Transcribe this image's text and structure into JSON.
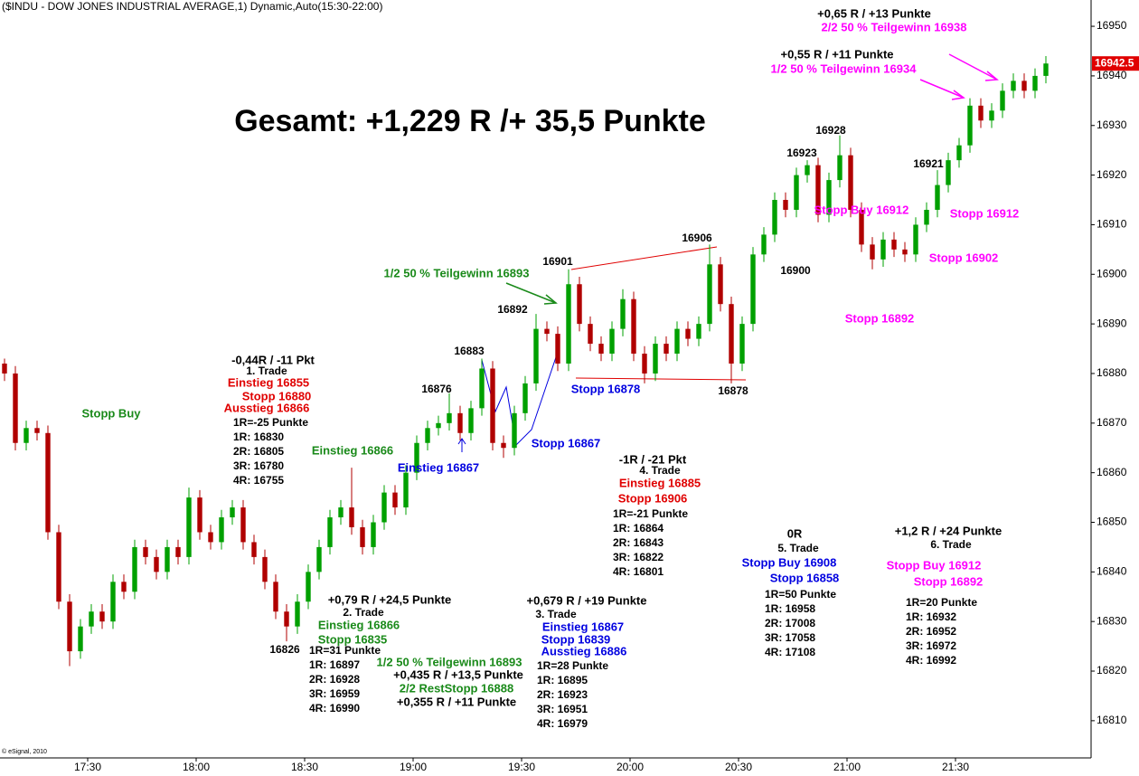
{
  "chart_data": {
    "type": "candlestick",
    "title": "($INDU - DOW JONES INDUSTRIAL AVERAGE,1) Dynamic,Auto(15:30-22:00)",
    "footer": "© eSignal, 2010",
    "xlim": [
      1025.75,
      1327.5
    ],
    "xticks": [
      {
        "value": 1050,
        "label": "17:30"
      },
      {
        "value": 1080,
        "label": "18:00"
      },
      {
        "value": 1110,
        "label": "18:30"
      },
      {
        "value": 1140,
        "label": "19:00"
      },
      {
        "value": 1170,
        "label": "19:30"
      },
      {
        "value": 1200,
        "label": "20:00"
      },
      {
        "value": 1230,
        "label": "20:30"
      },
      {
        "value": 1260,
        "label": "21:00"
      },
      {
        "value": 1290,
        "label": "21:30"
      }
    ],
    "ylim": [
      16802.5,
      16955.3
    ],
    "yticks": [
      16810,
      16820,
      16830,
      16840,
      16850,
      16860,
      16870,
      16880,
      16890,
      16900,
      16910,
      16920,
      16930,
      16940,
      16950
    ],
    "series": [
      {
        "up_color": "#00a000",
        "down_color": "#b00000",
        "x": [
          1027,
          1030,
          1033,
          1036,
          1039,
          1042,
          1045,
          1048,
          1051,
          1054,
          1057,
          1060,
          1063,
          1066,
          1069,
          1072,
          1075,
          1078,
          1081,
          1084,
          1087,
          1090,
          1093,
          1096,
          1099,
          1102,
          1105,
          1108,
          1111,
          1114,
          1117,
          1120,
          1123,
          1126,
          1129,
          1132,
          1135,
          1138,
          1141,
          1144,
          1147,
          1150,
          1153,
          1156,
          1159,
          1162,
          1165,
          1168,
          1171,
          1174,
          1177,
          1180,
          1183,
          1186,
          1189,
          1192,
          1195,
          1198,
          1201,
          1204,
          1207,
          1210,
          1213,
          1216,
          1219,
          1222,
          1225,
          1228,
          1231,
          1234,
          1237,
          1240,
          1243,
          1246,
          1249,
          1252,
          1255,
          1258,
          1261,
          1264,
          1267,
          1270,
          1273,
          1276,
          1279,
          1282,
          1285,
          1288,
          1291,
          1294,
          1297,
          1300,
          1303,
          1306,
          1309,
          1312,
          1315
        ],
        "open": [
          16882,
          16880,
          16866,
          16869,
          16868,
          16848,
          16834,
          16824,
          16829,
          16832,
          16830,
          16838,
          16836,
          16845,
          16843,
          16840,
          16845,
          16843,
          16855,
          16848,
          16846,
          16851,
          16853,
          16846,
          16843,
          16838,
          16832,
          16829,
          16834,
          16840,
          16845,
          16851,
          16853,
          16849,
          16845,
          16850,
          16856,
          16853,
          16860,
          16866,
          16869,
          16870,
          16872,
          16868,
          16873,
          16881,
          16866,
          16865,
          16872,
          16878,
          16889,
          16888,
          16882,
          16898,
          16890,
          16886,
          16884,
          16889,
          16895,
          16884,
          16880,
          16886,
          16884,
          16889,
          16887,
          16890,
          16902,
          16894,
          16882,
          16890,
          16904,
          16908,
          16915,
          16913,
          16920,
          16922,
          16912,
          16919,
          16924,
          16913,
          16906,
          16903,
          16907,
          16905,
          16904,
          16910,
          16913,
          16918,
          16923,
          16926,
          16934,
          16931,
          16933,
          16937,
          16939,
          16937,
          16940
        ],
        "high": [
          16883,
          16881.5,
          16870.5,
          16870.5,
          16869.5,
          16849.5,
          16835.5,
          16830.5,
          16833.5,
          16833.5,
          16839.5,
          16839.5,
          16846.5,
          16846.5,
          16844.5,
          16846.5,
          16846.5,
          16857,
          16856.5,
          16849.5,
          16852.5,
          16854.5,
          16854.5,
          16847.5,
          16844.5,
          16839.5,
          16833.5,
          16835.5,
          16841.5,
          16846.5,
          16852.5,
          16854.5,
          16861,
          16850.5,
          16851.5,
          16857.5,
          16857.5,
          16861.5,
          16867.5,
          16870.5,
          16871.5,
          16876,
          16873.5,
          16874.5,
          16883,
          16882.5,
          16867.5,
          16873.5,
          16879.5,
          16892,
          16890.5,
          16889.5,
          16901,
          16899.5,
          16891.5,
          16887.5,
          16890.5,
          16897,
          16896.5,
          16885.5,
          16887.5,
          16887.5,
          16890.5,
          16890.5,
          16891.5,
          16906,
          16903.5,
          16895.5,
          16891.5,
          16905.5,
          16909.5,
          16916.5,
          16916.5,
          16921.5,
          16923,
          16923.5,
          16920.5,
          16928,
          16925.5,
          16914.5,
          16907.5,
          16908.5,
          16908.5,
          16906.5,
          16911.5,
          16914.5,
          16921,
          16924.5,
          16927.5,
          16935.5,
          16935.5,
          16934.5,
          16938.5,
          16940.5,
          16940.5,
          16941.5,
          16944
        ],
        "low": [
          16878.5,
          16864.5,
          16864.5,
          16866.5,
          16846.5,
          16832.5,
          16821,
          16822.5,
          16827.5,
          16828.5,
          16828.5,
          16834.5,
          16834.5,
          16841.5,
          16838.5,
          16838.5,
          16841.5,
          16841.5,
          16846.5,
          16844.5,
          16844.5,
          16849.5,
          16844.5,
          16841.5,
          16836.5,
          16830.5,
          16826,
          16827.5,
          16832.5,
          16838.5,
          16843.5,
          16849.5,
          16847.5,
          16843.5,
          16843.5,
          16848.5,
          16851.5,
          16851.5,
          16858.5,
          16864.5,
          16867.5,
          16868.5,
          16866.5,
          16866.5,
          16871.5,
          16864.5,
          16863,
          16863.5,
          16870.5,
          16876.5,
          16886.5,
          16880.5,
          16880.5,
          16888.5,
          16884.5,
          16882.5,
          16882.5,
          16887.5,
          16882.5,
          16878,
          16878.5,
          16882.5,
          16882.5,
          16885.5,
          16885.5,
          16888.5,
          16892.5,
          16878,
          16880.5,
          16888.5,
          16902.5,
          16906.5,
          16911.5,
          16911.5,
          16918.5,
          16910.5,
          16910.5,
          16917.5,
          16911.5,
          16904.5,
          16901,
          16901.5,
          16903.5,
          16902.5,
          16902.5,
          16908.5,
          16911.5,
          16916.5,
          16921.5,
          16924.5,
          16929.5,
          16929.5,
          16931.5,
          16935.5,
          16935.5,
          16935.5,
          16938.5
        ],
        "close": [
          16880,
          16866,
          16869,
          16868,
          16848,
          16834,
          16824,
          16829,
          16832,
          16830,
          16838,
          16836,
          16845,
          16843,
          16840,
          16845,
          16843,
          16855,
          16848,
          16846,
          16851,
          16853,
          16846,
          16843,
          16838,
          16832,
          16829,
          16834,
          16840,
          16845,
          16851,
          16853,
          16849,
          16845,
          16850,
          16856,
          16853,
          16860,
          16866,
          16869,
          16870,
          16872,
          16868,
          16873,
          16881,
          16866,
          16865,
          16872,
          16878,
          16889,
          16888,
          16882,
          16898,
          16890,
          16886,
          16884,
          16889,
          16895,
          16884,
          16880,
          16886,
          16884,
          16889,
          16887,
          16890,
          16902,
          16894,
          16882,
          16890,
          16904,
          16908,
          16915,
          16913,
          16920,
          16922,
          16912,
          16919,
          16924,
          16913,
          16906,
          16903,
          16907,
          16905,
          16904,
          16910,
          16913,
          16918,
          16923,
          16926,
          16934,
          16931,
          16933,
          16937,
          16939,
          16937,
          16940,
          16942.5
        ]
      }
    ],
    "annotations": [
      {
        "text": "+0,65 R / +13 Punkte",
        "color": "#000000"
      },
      {
        "text": "2/2 50 % Teilgewinn 16938",
        "color": "#ff00ff"
      },
      {
        "text": "+0,55 R / +11 Punkte",
        "color": "#000000"
      },
      {
        "text": "1/2 50 % Teilgewinn 16934",
        "color": "#ff00ff"
      },
      {
        "text": "Gesamt: +1,229 R /+ 35,5 Punkte",
        "color": "#000000"
      },
      {
        "text": "16928",
        "color": "#000000"
      },
      {
        "text": "16923",
        "color": "#000000"
      },
      {
        "text": "16921",
        "color": "#000000"
      },
      {
        "text": "16906",
        "color": "#000000"
      },
      {
        "text": "16901",
        "color": "#000000"
      },
      {
        "text": "16892",
        "color": "#000000"
      },
      {
        "text": "16883",
        "color": "#000000"
      },
      {
        "text": "16876",
        "color": "#000000"
      },
      {
        "text": "16878",
        "color": "#000000"
      },
      {
        "text": "16826",
        "color": "#000000"
      },
      {
        "text": "16900",
        "color": "#000000"
      },
      {
        "text": "Stopp Buy 16912",
        "color": "#ff00ff"
      },
      {
        "text": "Stopp 16912",
        "color": "#ff00ff"
      },
      {
        "text": "Stopp 16902",
        "color": "#ff00ff"
      },
      {
        "text": "Stopp 16892",
        "color": "#ff00ff"
      },
      {
        "text": "1/2 50 % Teilgewinn 16893",
        "color": "#1a8a1a"
      },
      {
        "text": "-0,44R / -11 Pkt",
        "color": "#000000"
      },
      {
        "text": "1. Trade",
        "color": "#000000"
      },
      {
        "text": "Einstieg 16855",
        "color": "#e00000"
      },
      {
        "text": "Stopp 16880",
        "color": "#e00000"
      },
      {
        "text": "Ausstieg 16866",
        "color": "#e00000"
      },
      {
        "text": "1R=-25 Punkte",
        "color": "#000000"
      },
      {
        "text": "1R: 16830",
        "color": "#000000"
      },
      {
        "text": "2R: 16805",
        "color": "#000000"
      },
      {
        "text": "3R: 16780",
        "color": "#000000"
      },
      {
        "text": "4R: 16755",
        "color": "#000000"
      },
      {
        "text": "Stopp Buy",
        "color": "#1a8a1a"
      },
      {
        "text": "Stopp 16878",
        "color": "#0000e0"
      },
      {
        "text": "Einstieg 16866",
        "color": "#1a8a1a"
      },
      {
        "text": "Einstieg 16867",
        "color": "#0000e0"
      },
      {
        "text": "Stopp 16867",
        "color": "#0000e0"
      },
      {
        "text": "-1R / -21 Pkt",
        "color": "#000000"
      },
      {
        "text": "4. Trade",
        "color": "#000000"
      },
      {
        "text": "Einstieg 16885",
        "color": "#e00000"
      },
      {
        "text": "Stopp 16906",
        "color": "#e00000"
      },
      {
        "text": "1R=-21 Punkte",
        "color": "#000000"
      },
      {
        "text": "1R: 16864",
        "color": "#000000"
      },
      {
        "text": "2R: 16843",
        "color": "#000000"
      },
      {
        "text": "3R: 16822",
        "color": "#000000"
      },
      {
        "text": "4R: 16801",
        "color": "#000000"
      },
      {
        "text": "0R",
        "color": "#000000"
      },
      {
        "text": "5. Trade",
        "color": "#000000"
      },
      {
        "text": "Stopp Buy 16908",
        "color": "#0000e0"
      },
      {
        "text": "Stopp 16858",
        "color": "#0000e0"
      },
      {
        "text": "1R=50 Punkte",
        "color": "#000000"
      },
      {
        "text": "1R: 16958",
        "color": "#000000"
      },
      {
        "text": "2R: 17008",
        "color": "#000000"
      },
      {
        "text": "3R: 17058",
        "color": "#000000"
      },
      {
        "text": "4R: 17108",
        "color": "#000000"
      },
      {
        "text": "+1,2 R / +24 Punkte",
        "color": "#000000"
      },
      {
        "text": "6. Trade",
        "color": "#000000"
      },
      {
        "text": "Stopp Buy 16912",
        "color": "#ff00ff"
      },
      {
        "text": "Stopp 16892",
        "color": "#ff00ff"
      },
      {
        "text": "1R=20 Punkte",
        "color": "#000000"
      },
      {
        "text": "1R: 16932",
        "color": "#000000"
      },
      {
        "text": "2R: 16952",
        "color": "#000000"
      },
      {
        "text": "3R: 16972",
        "color": "#000000"
      },
      {
        "text": "4R: 16992",
        "color": "#000000"
      },
      {
        "text": "+0,79 R / +24,5 Punkte",
        "color": "#000000"
      },
      {
        "text": "2. Trade",
        "color": "#000000"
      },
      {
        "text": "Einstieg 16866",
        "color": "#1a8a1a"
      },
      {
        "text": "Stopp 16835",
        "color": "#1a8a1a"
      },
      {
        "text": "1R=31 Punkte",
        "color": "#000000"
      },
      {
        "text": "1R: 16897",
        "color": "#000000"
      },
      {
        "text": "2R: 16928",
        "color": "#000000"
      },
      {
        "text": "3R: 16959",
        "color": "#000000"
      },
      {
        "text": "4R: 16990",
        "color": "#000000"
      },
      {
        "text": "1/2 50 % Teilgewinn 16893",
        "color": "#1a8a1a"
      },
      {
        "text": "+0,435 R / +13,5 Punkte",
        "color": "#000000"
      },
      {
        "text": "2/2 RestStopp 16888",
        "color": "#1a8a1a"
      },
      {
        "text": "+0,355 R / +11 Punkte",
        "color": "#000000"
      },
      {
        "text": "+0,679 R / +19 Punkte",
        "color": "#000000"
      },
      {
        "text": "3. Trade",
        "color": "#000000"
      },
      {
        "text": "Einstieg 16867",
        "color": "#0000e0"
      },
      {
        "text": "Stopp 16839",
        "color": "#0000e0"
      },
      {
        "text": "Ausstieg 16886",
        "color": "#0000e0"
      },
      {
        "text": "1R=28 Punkte",
        "color": "#000000"
      },
      {
        "text": "1R: 16895",
        "color": "#000000"
      },
      {
        "text": "2R: 16923",
        "color": "#000000"
      },
      {
        "text": "3R: 16951",
        "color": "#000000"
      },
      {
        "text": "4R: 16979",
        "color": "#000000"
      }
    ]
  }
}
